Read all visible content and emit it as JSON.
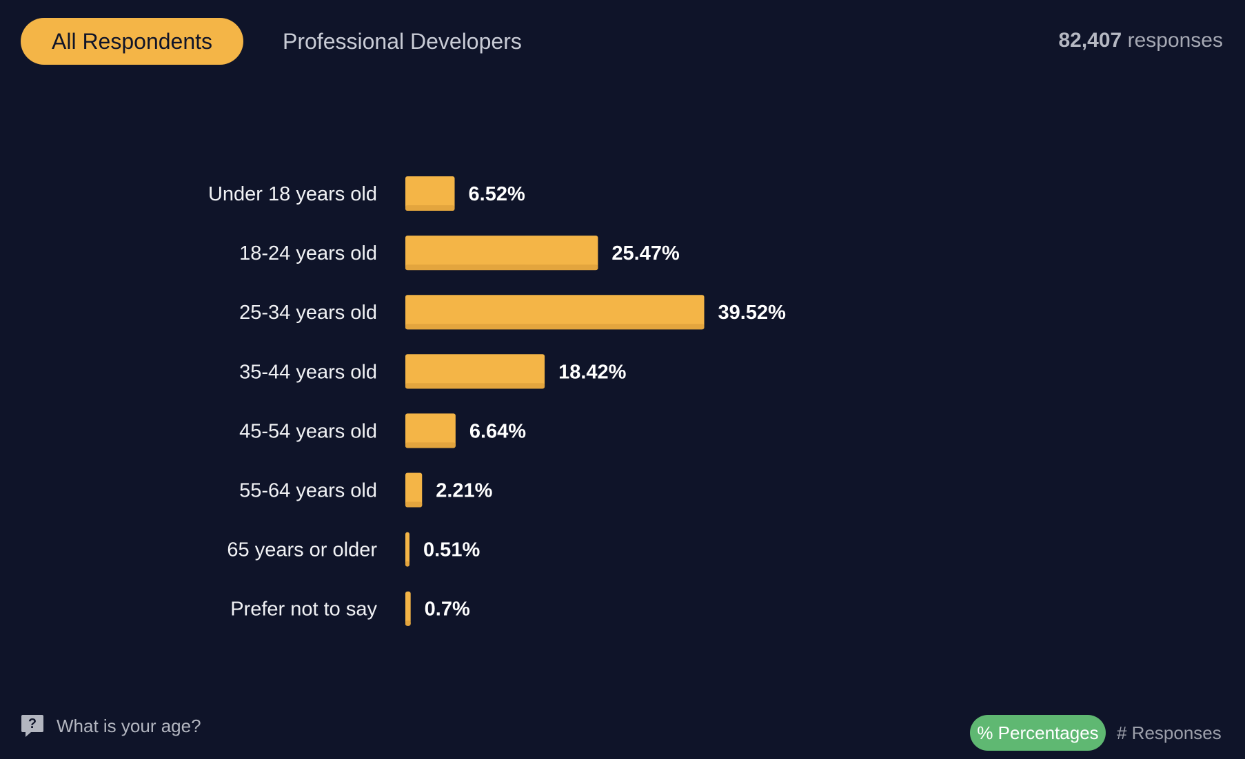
{
  "tabs": {
    "all_label": "All Respondents",
    "pro_label": "Professional Developers"
  },
  "summary": {
    "count": "82,407",
    "suffix": "responses"
  },
  "question": {
    "text": "What is your age?"
  },
  "toggles": {
    "percentages_label": "% Percentages",
    "responses_label": "# Responses"
  },
  "colors": {
    "background": "#0f1429",
    "bar": "#f4b547",
    "bar_shade": "#e3a53e",
    "active_tab": "#f4b547",
    "active_toggle": "#5fb872"
  },
  "chart_data": {
    "type": "bar",
    "orientation": "horizontal",
    "title": "",
    "xlabel": "",
    "ylabel": "",
    "categories": [
      "Under 18 years old",
      "18-24 years old",
      "25-34 years old",
      "35-44 years old",
      "45-54 years old",
      "55-64 years old",
      "65 years or older",
      "Prefer not to say"
    ],
    "values": [
      6.52,
      25.47,
      39.52,
      18.42,
      6.64,
      2.21,
      0.51,
      0.7
    ],
    "value_labels": [
      "6.52%",
      "25.47%",
      "39.52%",
      "18.42%",
      "6.64%",
      "2.21%",
      "0.51%",
      "0.7%"
    ],
    "unit": "%",
    "grid": false,
    "legend": "none"
  }
}
